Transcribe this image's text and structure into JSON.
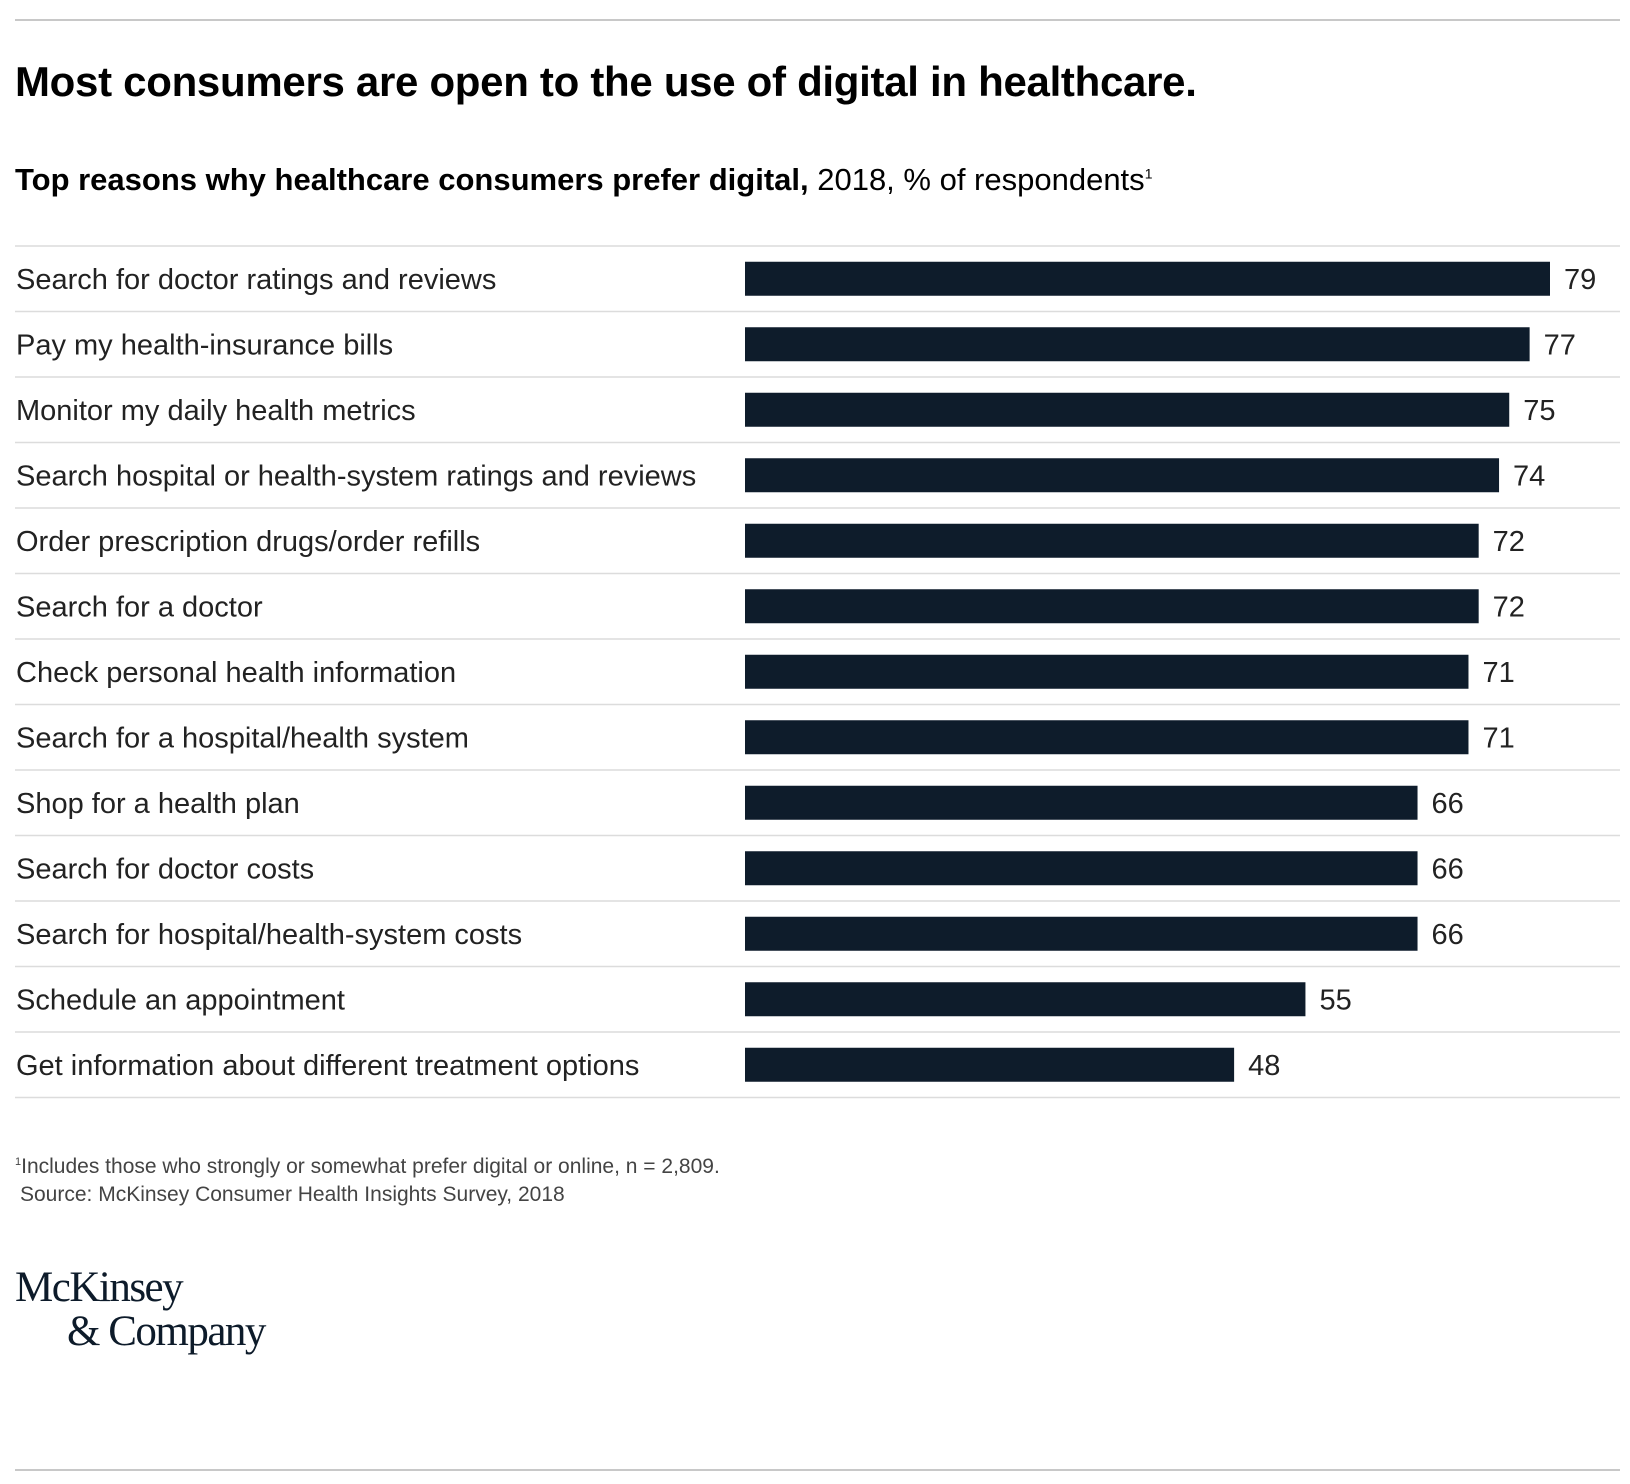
{
  "header": {
    "title": "Most consumers are open to the use of digital in healthcare.",
    "subtitle_bold": "Top reasons why healthcare consumers prefer digital,",
    "subtitle_normal": " 2018, % of respondents",
    "subtitle_sup": "1"
  },
  "chart_data": {
    "type": "bar",
    "orientation": "horizontal",
    "title": "Top reasons why healthcare consumers prefer digital, 2018, % of respondents",
    "categories": [
      "Search for doctor ratings and reviews",
      "Pay my health-insurance bills",
      "Monitor my daily health metrics",
      "Search hospital or health-system ratings and reviews",
      "Order prescription drugs/order refills",
      "Search for a doctor",
      "Check personal health information",
      "Search for a hospital/health system",
      "Shop for a health plan",
      "Search for doctor costs",
      "Search for hospital/health-system costs",
      "Schedule an appointment",
      "Get information about different treatment options"
    ],
    "values": [
      79,
      77,
      75,
      74,
      72,
      72,
      71,
      71,
      66,
      66,
      66,
      55,
      48
    ],
    "xlim": [
      0,
      79
    ],
    "bar_color": "#0e1c2b",
    "grid": false,
    "legend": "none"
  },
  "footnote": {
    "marker": "1",
    "text": "Includes those who strongly or somewhat prefer digital or online, n = 2,809.",
    "source": "Source: McKinsey Consumer Health Insights Survey, 2018"
  },
  "logo": {
    "line1": "McKinsey",
    "line2": "& Company"
  }
}
